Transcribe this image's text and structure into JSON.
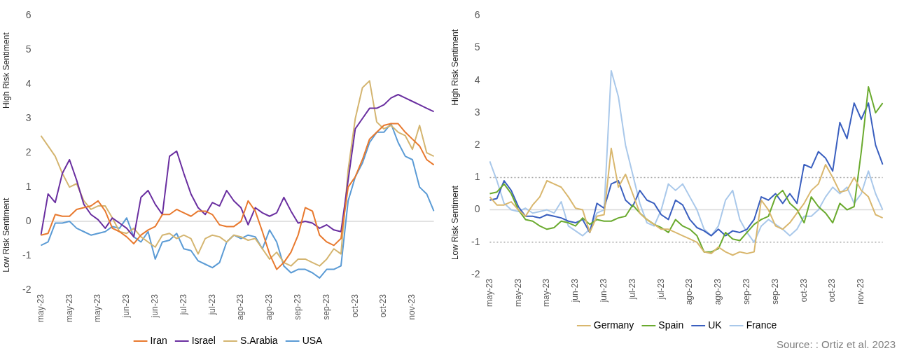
{
  "chart_data": [
    {
      "type": "line",
      "ylabel": "High Risk Sentiment",
      "annotations": [
        "Low Risk Sentiment"
      ],
      "legend": "bottom",
      "grid": false,
      "ylim": [
        -2,
        6
      ],
      "yticks": [
        -2,
        -1,
        0,
        1,
        2,
        3,
        4,
        5,
        6
      ],
      "ref_lines": [
        {
          "axis": "y",
          "value": 0,
          "color": "#d9d9d9",
          "line_style": "solid"
        }
      ],
      "categories": [
        "may-23",
        null,
        null,
        null,
        "may-23",
        null,
        null,
        null,
        "may-23",
        null,
        null,
        null,
        "jun-23",
        null,
        null,
        null,
        "jun-23",
        null,
        null,
        null,
        "jul-23",
        null,
        null,
        null,
        "jul-23",
        null,
        null,
        null,
        "ago-23",
        null,
        null,
        null,
        "ago-23",
        null,
        null,
        null,
        "sep-23",
        null,
        null,
        null,
        "sep-23",
        null,
        null,
        null,
        "oct-23",
        null,
        null,
        null,
        "oct-23",
        null,
        null,
        null,
        "nov-23",
        null,
        null,
        null
      ],
      "series": [
        {
          "name": "Iran",
          "color": "#e8792e",
          "values": [
            -0.4,
            -0.35,
            0.2,
            0.15,
            0.15,
            0.35,
            0.4,
            0.45,
            0.6,
            0.3,
            -0.2,
            -0.3,
            -0.45,
            -0.65,
            -0.4,
            -0.25,
            -0.15,
            0.2,
            0.2,
            0.35,
            0.25,
            0.15,
            0.3,
            0.3,
            0.2,
            -0.1,
            -0.15,
            -0.15,
            0,
            0.6,
            0.3,
            -0.3,
            -0.95,
            -1.4,
            -1.2,
            -0.9,
            -0.4,
            0.4,
            0.3,
            -0.4,
            -0.6,
            -0.7,
            -0.5,
            1,
            1.3,
            1.8,
            2.4,
            2.6,
            2.8,
            2.85,
            2.85,
            2.6,
            2.4,
            2.2,
            1.8,
            1.65
          ]
        },
        {
          "name": "Israel",
          "color": "#6a2fa0",
          "values": [
            -0.4,
            0.8,
            0.55,
            1.4,
            1.8,
            1.2,
            0.5,
            0.2,
            0.05,
            -0.2,
            0.1,
            -0.05,
            -0.2,
            -0.45,
            0.7,
            0.9,
            0.5,
            0.2,
            1.9,
            2.05,
            1.4,
            0.8,
            0.4,
            0.2,
            0.55,
            0.45,
            0.9,
            0.6,
            0.4,
            -0.1,
            0.4,
            0.25,
            0.15,
            0.25,
            0.7,
            0.3,
            -0.05,
            0,
            -0.05,
            -0.2,
            -0.1,
            -0.25,
            -0.3,
            1.2,
            2.7,
            3,
            3.3,
            3.3,
            3.4,
            3.6,
            3.7,
            3.6,
            3.5,
            3.4,
            3.3,
            3.2
          ]
        },
        {
          "name": "S.Arabia",
          "color": "#d4b570",
          "values": [
            2.5,
            2.2,
            1.9,
            1.4,
            1,
            1.1,
            0.6,
            0.35,
            0.45,
            0.45,
            0.1,
            -0.3,
            -0.35,
            -0.2,
            -0.45,
            -0.6,
            -0.75,
            -0.4,
            -0.35,
            -0.5,
            -0.4,
            -0.5,
            -0.95,
            -0.5,
            -0.4,
            -0.45,
            -0.6,
            -0.4,
            -0.45,
            -0.55,
            -0.5,
            -0.8,
            -1.1,
            -0.9,
            -1.2,
            -1.3,
            -1.1,
            -1.1,
            -1.2,
            -1.3,
            -1.1,
            -0.8,
            -0.95,
            1.5,
            3,
            3.9,
            4.1,
            2.9,
            2.7,
            2.8,
            2.6,
            2.5,
            2.1,
            2.8,
            2,
            1.9
          ]
        },
        {
          "name": "USA",
          "color": "#5b9bd5",
          "values": [
            -0.7,
            -0.6,
            -0.05,
            -0.05,
            0,
            -0.2,
            -0.3,
            -0.4,
            -0.35,
            -0.3,
            -0.15,
            -0.2,
            0.1,
            -0.45,
            -0.6,
            -0.3,
            -1.1,
            -0.6,
            -0.55,
            -0.35,
            -0.8,
            -0.85,
            -1.15,
            -1.25,
            -1.35,
            -1.2,
            -0.6,
            -0.4,
            -0.5,
            -0.4,
            -0.45,
            -0.8,
            -0.25,
            -0.6,
            -1.3,
            -1.5,
            -1.4,
            -1.4,
            -1.5,
            -1.65,
            -1.4,
            -1.4,
            -1.3,
            0.6,
            1.3,
            1.7,
            2.3,
            2.6,
            2.6,
            2.85,
            2.3,
            1.9,
            1.8,
            1,
            0.8,
            0.3
          ]
        }
      ]
    },
    {
      "type": "line",
      "ylabel": "High Risk Sentiment",
      "annotations": [
        "Low Risk Sentiment",
        "Source: : Ortiz et al. 2023"
      ],
      "legend": "bottom",
      "grid": false,
      "ylim": [
        -2,
        6
      ],
      "yticks": [
        -2,
        -1,
        0,
        1,
        2,
        3,
        4,
        5,
        6
      ],
      "ref_lines": [
        {
          "axis": "y",
          "value": 0,
          "color": "#d9d9d9",
          "line_style": "solid"
        },
        {
          "axis": "y",
          "value": 1,
          "color": "#a6a6a6",
          "line_style": "dotted"
        },
        {
          "axis": "y",
          "value": -1,
          "color": "#a6a6a6",
          "line_style": "dotted"
        }
      ],
      "categories": [
        "may-23",
        null,
        null,
        null,
        "may-23",
        null,
        null,
        null,
        "may-23",
        null,
        null,
        null,
        "jun-23",
        null,
        null,
        null,
        "jun-23",
        null,
        null,
        null,
        "jul-23",
        null,
        null,
        null,
        "jul-23",
        null,
        null,
        null,
        "ago-23",
        null,
        null,
        null,
        "ago-23",
        null,
        null,
        null,
        "sep-23",
        null,
        null,
        null,
        "sep-23",
        null,
        null,
        null,
        "oct-23",
        null,
        null,
        null,
        "oct-23",
        null,
        null,
        null,
        "nov-23",
        null,
        null,
        null
      ],
      "series": [
        {
          "name": "Germany",
          "color": "#d9b76e",
          "values": [
            0.4,
            0.15,
            0.15,
            0.25,
            0,
            -0.2,
            0.15,
            0.4,
            0.9,
            0.8,
            0.7,
            0.4,
            0.05,
            0,
            -0.7,
            -0.2,
            -0.15,
            1.9,
            0.7,
            1.1,
            0.5,
            -0.1,
            -0.3,
            -0.45,
            -0.6,
            -0.6,
            -0.7,
            -0.8,
            -0.9,
            -1,
            -1.3,
            -1.35,
            -1.15,
            -1.3,
            -1.4,
            -1.3,
            -1.35,
            -1.3,
            0.3,
            0,
            -0.5,
            -0.6,
            -0.4,
            -0.1,
            0.2,
            0.6,
            0.8,
            1.4,
            1,
            0.55,
            0.6,
            1,
            0.6,
            0.4,
            -0.15,
            -0.25
          ]
        },
        {
          "name": "Spain",
          "color": "#6aaa2e",
          "values": [
            0.5,
            0.55,
            0.8,
            0.5,
            0,
            -0.3,
            -0.35,
            -0.5,
            -0.6,
            -0.55,
            -0.35,
            -0.4,
            -0.5,
            -0.25,
            -0.45,
            -0.3,
            -0.35,
            -0.35,
            -0.25,
            -0.2,
            0.15,
            -0.1,
            -0.3,
            -0.45,
            -0.55,
            -0.7,
            -0.3,
            -0.5,
            -0.6,
            -0.8,
            -1.3,
            -1.3,
            -1.2,
            -0.7,
            -0.9,
            -0.95,
            -0.7,
            -0.45,
            -0.3,
            -0.2,
            0.4,
            0.6,
            0.2,
            0,
            -0.4,
            0.4,
            0.1,
            -0.1,
            -0.4,
            0.2,
            0,
            0.1,
            1.8,
            3.8,
            3,
            3.3
          ]
        },
        {
          "name": "UK",
          "color": "#3a5fbf",
          "values": [
            0.3,
            0.35,
            0.9,
            0.6,
            0.1,
            -0.2,
            -0.2,
            -0.25,
            -0.15,
            -0.2,
            -0.25,
            -0.35,
            -0.4,
            -0.3,
            -0.7,
            0.2,
            0.05,
            0.8,
            0.9,
            0.3,
            0.1,
            0.6,
            0.3,
            0.2,
            -0.15,
            -0.3,
            0.3,
            0.15,
            -0.3,
            -0.55,
            -0.65,
            -0.8,
            -0.6,
            -0.8,
            -0.65,
            -0.7,
            -0.6,
            -0.3,
            0.4,
            0.3,
            0.5,
            0.2,
            0.5,
            0.2,
            1.4,
            1.3,
            1.8,
            1.6,
            1.2,
            2.7,
            2.2,
            3.3,
            2.8,
            3.3,
            2,
            1.4
          ]
        },
        {
          "name": "France",
          "color": "#a9c8ea",
          "values": [
            1.5,
            0.9,
            0.2,
            0,
            -0.05,
            0.05,
            -0.1,
            -0.05,
            0,
            -0.1,
            0.25,
            -0.5,
            -0.65,
            -0.8,
            -0.6,
            -0.1,
            0,
            4.3,
            3.5,
            2,
            1.1,
            0.2,
            -0.4,
            -0.5,
            0,
            0.8,
            0.6,
            0.8,
            0.4,
            0,
            -0.6,
            -0.8,
            -0.5,
            0.3,
            0.6,
            -0.3,
            -0.7,
            -1,
            -0.5,
            -0.3,
            -0.45,
            -0.6,
            -0.8,
            -0.6,
            -0.2,
            -0.2,
            0,
            0.4,
            0.7,
            0.5,
            0.7,
            0.2,
            0.5,
            1.2,
            0.5,
            0
          ]
        }
      ]
    }
  ]
}
